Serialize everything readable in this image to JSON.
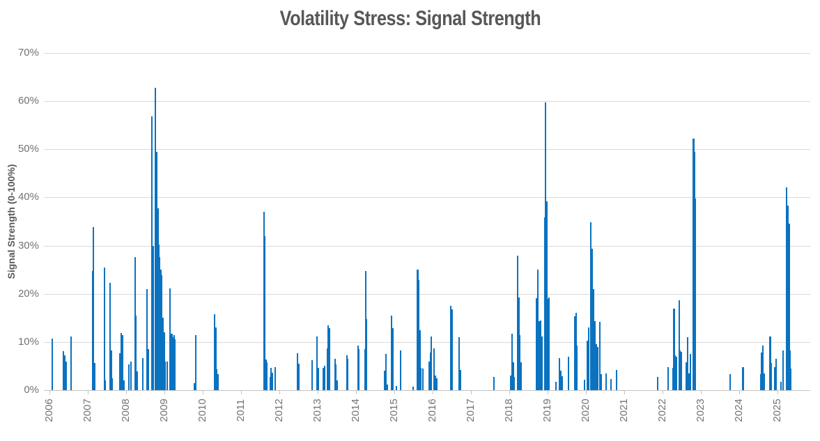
{
  "title": "Volatility Stress: Signal Strength",
  "colors": {
    "bar": "#0b72c0",
    "title_text": "#575757",
    "axis_label_text": "#737373",
    "gridline": "#d9d9d9",
    "axis_line": "#c3c3c3"
  },
  "chart_data": {
    "type": "bar",
    "title": "Volatility Stress: Signal Strength",
    "xlabel": "",
    "ylabel": "Signal Strength (0-100%)",
    "ylim": [
      0,
      70
    ],
    "yticks": [
      0,
      10,
      20,
      30,
      40,
      50,
      60,
      70
    ],
    "ytick_labels": [
      "0%",
      "10%",
      "20%",
      "30%",
      "40%",
      "50%",
      "60%",
      "70%"
    ],
    "xlim": [
      2005.85,
      2025.85
    ],
    "xticks": [
      2006,
      2007,
      2008,
      2009,
      2010,
      2011,
      2012,
      2013,
      2014,
      2015,
      2016,
      2017,
      2018,
      2019,
      2020,
      2021,
      2022,
      2023,
      2024,
      2025
    ],
    "xtick_labels": [
      "2006",
      "2007",
      "2008",
      "2009",
      "2010",
      "2011",
      "2012",
      "2013",
      "2014",
      "2015",
      "2016",
      "2017",
      "2018",
      "2019",
      "2020",
      "2021",
      "2022",
      "2023",
      "2024",
      "2025"
    ],
    "grid": true,
    "legend": false,
    "x_units": "decimal year",
    "y_units": "percent",
    "points": [
      [
        2006.07,
        10.7
      ],
      [
        2006.37,
        8.1
      ],
      [
        2006.4,
        7.3
      ],
      [
        2006.44,
        6.0
      ],
      [
        2006.56,
        11.1
      ],
      [
        2007.13,
        24.7
      ],
      [
        2007.15,
        33.9
      ],
      [
        2007.18,
        5.6
      ],
      [
        2007.43,
        25.5
      ],
      [
        2007.46,
        2.0
      ],
      [
        2007.58,
        22.3
      ],
      [
        2007.61,
        8.3
      ],
      [
        2007.64,
        2.5
      ],
      [
        2007.83,
        7.7
      ],
      [
        2007.87,
        11.8
      ],
      [
        2007.91,
        11.4
      ],
      [
        2007.94,
        2.0
      ],
      [
        2008.08,
        5.4
      ],
      [
        2008.12,
        6.0
      ],
      [
        2008.23,
        27.7
      ],
      [
        2008.26,
        15.5
      ],
      [
        2008.29,
        3.9
      ],
      [
        2008.43,
        6.6
      ],
      [
        2008.55,
        21.0
      ],
      [
        2008.59,
        8.5
      ],
      [
        2008.68,
        56.9
      ],
      [
        2008.71,
        30.0
      ],
      [
        2008.77,
        62.8
      ],
      [
        2008.8,
        49.4
      ],
      [
        2008.83,
        37.8
      ],
      [
        2008.85,
        30.2
      ],
      [
        2008.88,
        27.6
      ],
      [
        2008.91,
        25.0
      ],
      [
        2008.93,
        23.8
      ],
      [
        2008.96,
        15.0
      ],
      [
        2008.99,
        12.0
      ],
      [
        2009.02,
        6.0
      ],
      [
        2009.08,
        6.0
      ],
      [
        2009.15,
        21.1
      ],
      [
        2009.19,
        11.7
      ],
      [
        2009.22,
        11.0
      ],
      [
        2009.25,
        11.4
      ],
      [
        2009.28,
        10.5
      ],
      [
        2009.79,
        1.5
      ],
      [
        2009.82,
        11.4
      ],
      [
        2010.31,
        15.7
      ],
      [
        2010.34,
        13.0
      ],
      [
        2010.37,
        4.3
      ],
      [
        2010.4,
        3.4
      ],
      [
        2011.6,
        37.1
      ],
      [
        2011.62,
        32.0
      ],
      [
        2011.65,
        6.3
      ],
      [
        2011.67,
        5.8
      ],
      [
        2011.76,
        2.8
      ],
      [
        2011.79,
        4.6
      ],
      [
        2011.82,
        3.6
      ],
      [
        2011.89,
        4.8
      ],
      [
        2012.47,
        7.7
      ],
      [
        2012.5,
        5.5
      ],
      [
        2012.85,
        6.2
      ],
      [
        2012.98,
        11.2
      ],
      [
        2013.01,
        4.6
      ],
      [
        2013.14,
        4.7
      ],
      [
        2013.18,
        5.0
      ],
      [
        2013.25,
        8.7
      ],
      [
        2013.28,
        13.4
      ],
      [
        2013.31,
        12.9
      ],
      [
        2013.45,
        6.5
      ],
      [
        2013.48,
        5.3
      ],
      [
        2013.51,
        2.0
      ],
      [
        2013.76,
        7.3
      ],
      [
        2013.79,
        6.5
      ],
      [
        2014.05,
        9.3
      ],
      [
        2014.08,
        8.5
      ],
      [
        2014.23,
        8.5
      ],
      [
        2014.25,
        24.8
      ],
      [
        2014.28,
        14.7
      ],
      [
        2014.75,
        4.0
      ],
      [
        2014.78,
        7.6
      ],
      [
        2014.81,
        1.2
      ],
      [
        2014.93,
        15.5
      ],
      [
        2014.96,
        12.9
      ],
      [
        2015.06,
        0.9
      ],
      [
        2015.16,
        8.3
      ],
      [
        2015.49,
        0.8
      ],
      [
        2015.61,
        25.0
      ],
      [
        2015.64,
        22.8
      ],
      [
        2015.67,
        12.5
      ],
      [
        2015.69,
        4.7
      ],
      [
        2015.75,
        4.5
      ],
      [
        2015.91,
        6.0
      ],
      [
        2015.94,
        7.8
      ],
      [
        2015.97,
        11.2
      ],
      [
        2016.04,
        8.7
      ],
      [
        2016.07,
        3.0
      ],
      [
        2016.1,
        2.5
      ],
      [
        2016.47,
        17.5
      ],
      [
        2016.5,
        16.8
      ],
      [
        2016.69,
        11.0
      ],
      [
        2016.72,
        4.2
      ],
      [
        2017.6,
        2.8
      ],
      [
        2018.04,
        3.0
      ],
      [
        2018.07,
        11.7
      ],
      [
        2018.1,
        5.8
      ],
      [
        2018.13,
        2.8
      ],
      [
        2018.22,
        27.9
      ],
      [
        2018.25,
        19.2
      ],
      [
        2018.28,
        11.4
      ],
      [
        2018.31,
        5.8
      ],
      [
        2018.71,
        19.1
      ],
      [
        2018.75,
        25.0
      ],
      [
        2018.79,
        14.3
      ],
      [
        2018.82,
        14.5
      ],
      [
        2018.86,
        11.1
      ],
      [
        2018.93,
        35.9
      ],
      [
        2018.95,
        59.7
      ],
      [
        2018.98,
        39.2
      ],
      [
        2019.01,
        18.9
      ],
      [
        2019.04,
        19.2
      ],
      [
        2019.22,
        1.7
      ],
      [
        2019.31,
        6.6
      ],
      [
        2019.34,
        4.0
      ],
      [
        2019.38,
        2.9
      ],
      [
        2019.55,
        7.0
      ],
      [
        2019.71,
        15.4
      ],
      [
        2019.74,
        16.1
      ],
      [
        2019.77,
        9.2
      ],
      [
        2019.97,
        2.2
      ],
      [
        2020.04,
        10.3
      ],
      [
        2020.07,
        13.0
      ],
      [
        2020.13,
        34.9
      ],
      [
        2020.16,
        29.3
      ],
      [
        2020.2,
        21.0
      ],
      [
        2020.24,
        14.3
      ],
      [
        2020.27,
        9.5
      ],
      [
        2020.3,
        9.0
      ],
      [
        2020.37,
        14.2
      ],
      [
        2020.4,
        3.4
      ],
      [
        2020.53,
        3.5
      ],
      [
        2020.65,
        2.3
      ],
      [
        2020.8,
        4.2
      ],
      [
        2021.87,
        2.7
      ],
      [
        2022.14,
        4.8
      ],
      [
        2022.27,
        4.7
      ],
      [
        2022.3,
        17.0
      ],
      [
        2022.33,
        7.3
      ],
      [
        2022.36,
        6.9
      ],
      [
        2022.43,
        18.6
      ],
      [
        2022.46,
        8.2
      ],
      [
        2022.49,
        8.0
      ],
      [
        2022.62,
        5.8
      ],
      [
        2022.66,
        11.0
      ],
      [
        2022.69,
        3.5
      ],
      [
        2022.72,
        7.5
      ],
      [
        2022.81,
        52.2
      ],
      [
        2022.83,
        49.4
      ],
      [
        2022.86,
        39.8
      ],
      [
        2023.77,
        3.4
      ],
      [
        2024.1,
        4.8
      ],
      [
        2024.56,
        3.3
      ],
      [
        2024.59,
        7.8
      ],
      [
        2024.62,
        9.3
      ],
      [
        2024.65,
        3.5
      ],
      [
        2024.81,
        11.2
      ],
      [
        2024.84,
        5.6
      ],
      [
        2024.92,
        4.8
      ],
      [
        2024.96,
        6.5
      ],
      [
        2025.09,
        1.8
      ],
      [
        2025.14,
        8.2
      ],
      [
        2025.24,
        42.1
      ],
      [
        2025.27,
        38.3
      ],
      [
        2025.3,
        34.6
      ],
      [
        2025.32,
        8.3
      ],
      [
        2025.35,
        4.5
      ]
    ]
  }
}
